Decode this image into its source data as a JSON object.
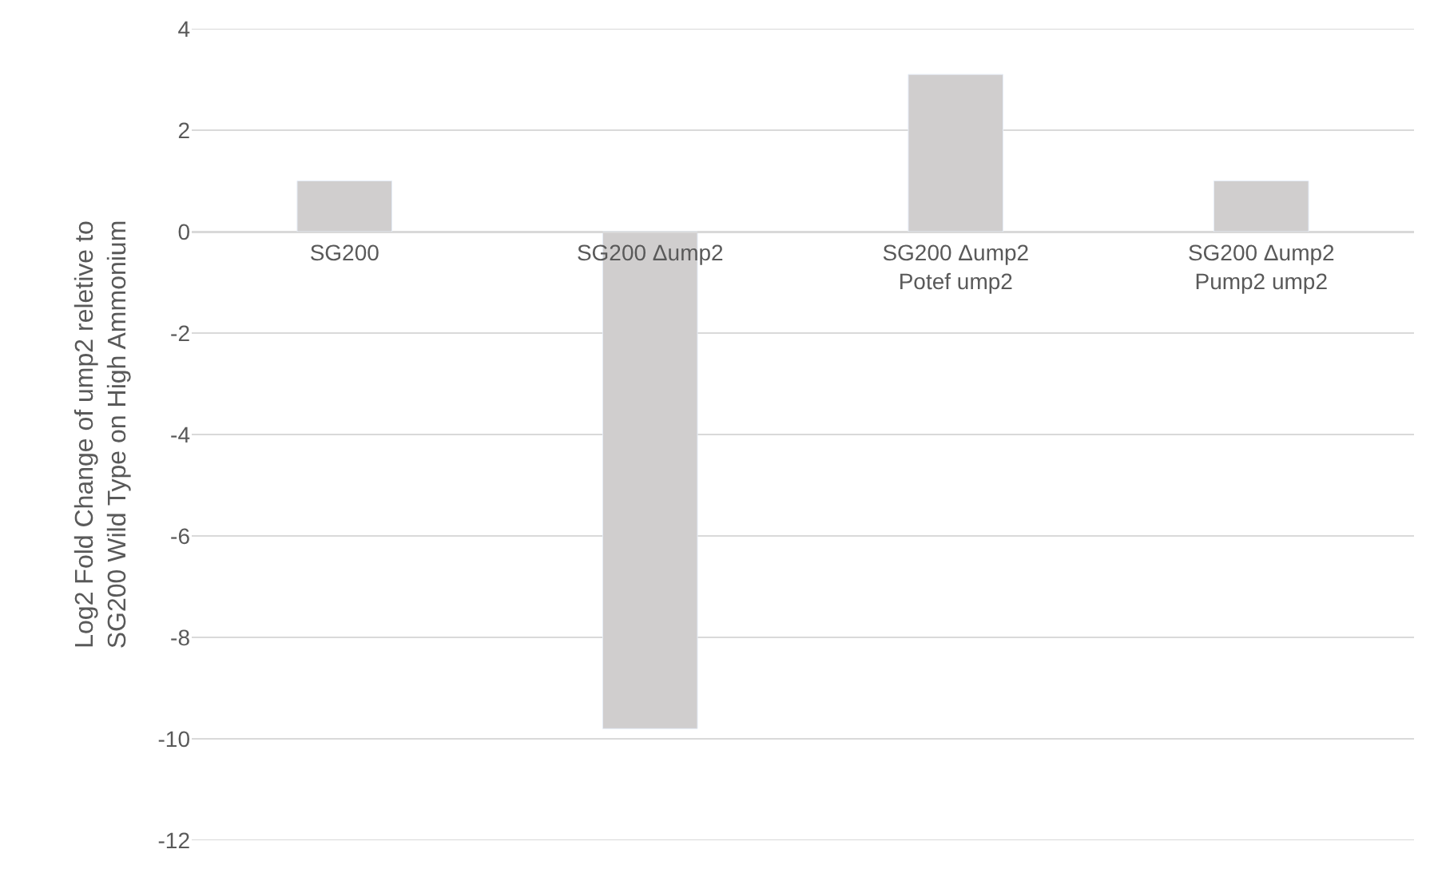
{
  "chart_data": {
    "type": "bar",
    "ylabel": "Log2 Fold Change of ump2 reletive to\nSG200 Wild Type on High Ammonium",
    "categories": [
      "SG200",
      "SG200 Δump2",
      "SG200 Δump2\nPotef ump2",
      "SG200 Δump2\nPump2 ump2"
    ],
    "values": [
      1.0,
      -9.8,
      3.1,
      1.0
    ],
    "color": "#d0cece",
    "ylim": [
      -12,
      4
    ],
    "yticks": [
      -12,
      -10,
      -8,
      -6,
      -4,
      -2,
      0,
      2,
      4
    ],
    "grid": "y"
  }
}
